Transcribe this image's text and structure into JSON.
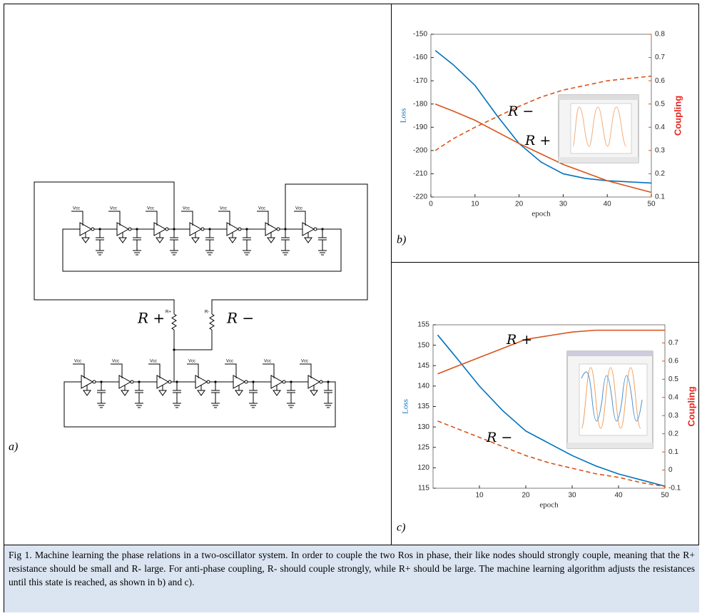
{
  "panels": {
    "a": "a)",
    "b": "b)",
    "c": "c)"
  },
  "diagram": {
    "vcc_labels": [
      "Vcc",
      "Vcc",
      "Vcc",
      "Vcc",
      "Vcc",
      "Vcc",
      "Vcc",
      "Vcc",
      "Vcc",
      "Vcc",
      "Vcc",
      "Vcc",
      "Vcc",
      "Vcc"
    ],
    "resistor_labels": [
      "R+",
      "R-"
    ],
    "annotations": [
      "R +",
      "R −"
    ]
  },
  "chart_data": [
    {
      "type": "line",
      "xlabel": "epoch",
      "ylabel": "Loss",
      "y2label": "Coupling",
      "ylabel_color": "#0072bd",
      "y2_color": "#d95319",
      "y2label_color": "#e8251f",
      "xlim": [
        0,
        50
      ],
      "xticks": [
        0,
        10,
        20,
        30,
        40,
        50
      ],
      "ylim": [
        -220,
        -150
      ],
      "yticks": [
        -220,
        -210,
        -200,
        -190,
        -180,
        -170,
        -160,
        -150
      ],
      "y2lim": [
        0.1,
        0.8
      ],
      "y2ticks": [
        0.1,
        0.2,
        0.3,
        0.4,
        0.5,
        0.6,
        0.7,
        0.8
      ],
      "x": [
        1,
        5,
        10,
        15,
        20,
        25,
        30,
        35,
        40,
        45,
        50
      ],
      "annotations": [
        "R −",
        "R +"
      ],
      "series": [
        {
          "color": "#0072bd",
          "line_style": "solid",
          "values": [
            -157,
            -163,
            -172,
            -185,
            -197,
            -205,
            -210,
            -212,
            -213,
            -213.5,
            -214
          ]
        },
        {
          "color": "#d95319",
          "line_style": "solid",
          "axis": "y2",
          "values": [
            0.5,
            0.47,
            0.43,
            0.38,
            0.33,
            0.285,
            0.24,
            0.205,
            0.17,
            0.145,
            0.12
          ]
        },
        {
          "color": "#d95319",
          "line_style": "dashed",
          "axis": "y2",
          "values": [
            0.3,
            0.35,
            0.4,
            0.445,
            0.49,
            0.53,
            0.56,
            0.58,
            0.6,
            0.61,
            0.62
          ]
        }
      ]
    },
    {
      "type": "line",
      "xlabel": "epoch",
      "ylabel": "Loss",
      "y2label": "Coupling",
      "ylabel_color": "#0072bd",
      "y2_color": "#d95319",
      "y2label_color": "#e8251f",
      "xlim": [
        0,
        50
      ],
      "xticks": [
        10,
        20,
        30,
        40,
        50
      ],
      "ylim": [
        115,
        155
      ],
      "yticks": [
        115,
        120,
        125,
        130,
        135,
        140,
        145,
        150,
        155
      ],
      "y2lim": [
        -0.1,
        0.8
      ],
      "y2ticks": [
        -0.1,
        0,
        0.1,
        0.2,
        0.3,
        0.4,
        0.5,
        0.6,
        0.7
      ],
      "x": [
        1,
        5,
        10,
        15,
        20,
        25,
        30,
        35,
        40,
        45,
        50
      ],
      "annotations": [
        "R +",
        "R −"
      ],
      "series": [
        {
          "color": "#0072bd",
          "line_style": "solid",
          "values": [
            152.5,
            147,
            140,
            134,
            129,
            126,
            123,
            120.5,
            118.5,
            117,
            115.5
          ]
        },
        {
          "color": "#d95319",
          "line_style": "solid",
          "axis": "y2",
          "values": [
            0.53,
            0.57,
            0.62,
            0.67,
            0.72,
            0.74,
            0.76,
            0.77,
            0.77,
            0.77,
            0.77
          ]
        },
        {
          "color": "#d95319",
          "line_style": "dashed",
          "axis": "y2",
          "values": [
            0.27,
            0.23,
            0.18,
            0.13,
            0.08,
            0.04,
            0.01,
            -0.02,
            -0.04,
            -0.07,
            -0.09
          ]
        }
      ]
    }
  ],
  "caption": "Fig 1. Machine learning the phase relations in a two-oscillator system. In order to couple the two Ros in phase, their like nodes should strongly couple, meaning that the R+ resistance should be small and R- large. For anti-phase coupling, R- should couple strongly, while R+ should be large. The machine learning algorithm adjusts the resistances until this state is reached, as shown in b) and c)."
}
